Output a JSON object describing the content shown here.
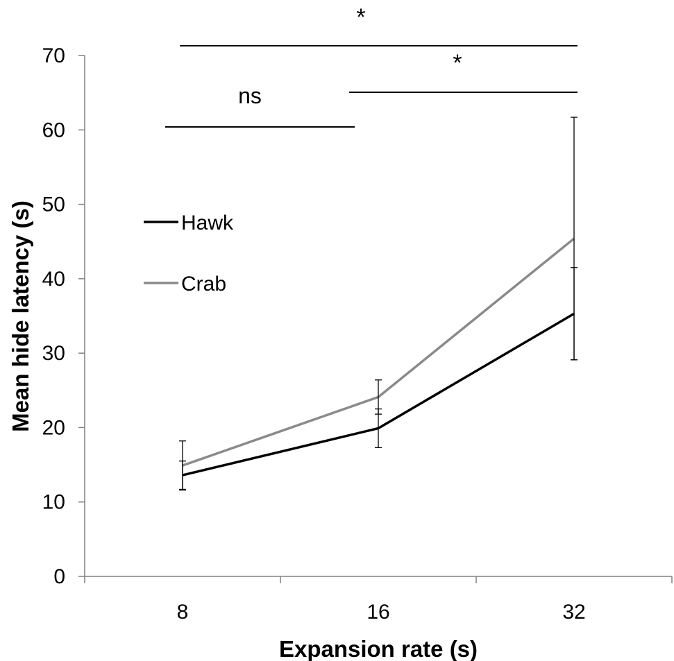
{
  "chart_data": {
    "type": "line",
    "xlabel": "Expansion rate (s)",
    "ylabel": "Mean hide latency (s)",
    "categories": [
      "8",
      "16",
      "32"
    ],
    "ylim": [
      0,
      70
    ],
    "yticks": [
      "0",
      "10",
      "20",
      "30",
      "40",
      "50",
      "60",
      "70"
    ],
    "grid": false,
    "legend_position": "left",
    "series": [
      {
        "name": "Hawk",
        "color": "#000000",
        "values": [
          13.6,
          19.9,
          35.3
        ],
        "errors": [
          1.9,
          2.6,
          6.2
        ]
      },
      {
        "name": "Crab",
        "color": "#8a8a8a",
        "values": [
          14.9,
          24.1,
          45.4
        ],
        "errors": [
          3.3,
          2.3,
          16.3
        ]
      }
    ],
    "significance": [
      {
        "label": "ns",
        "from": "8",
        "to": "16"
      },
      {
        "label": "*",
        "from": "16",
        "to": "32"
      },
      {
        "label": "*",
        "from": "8",
        "to": "32"
      }
    ]
  }
}
